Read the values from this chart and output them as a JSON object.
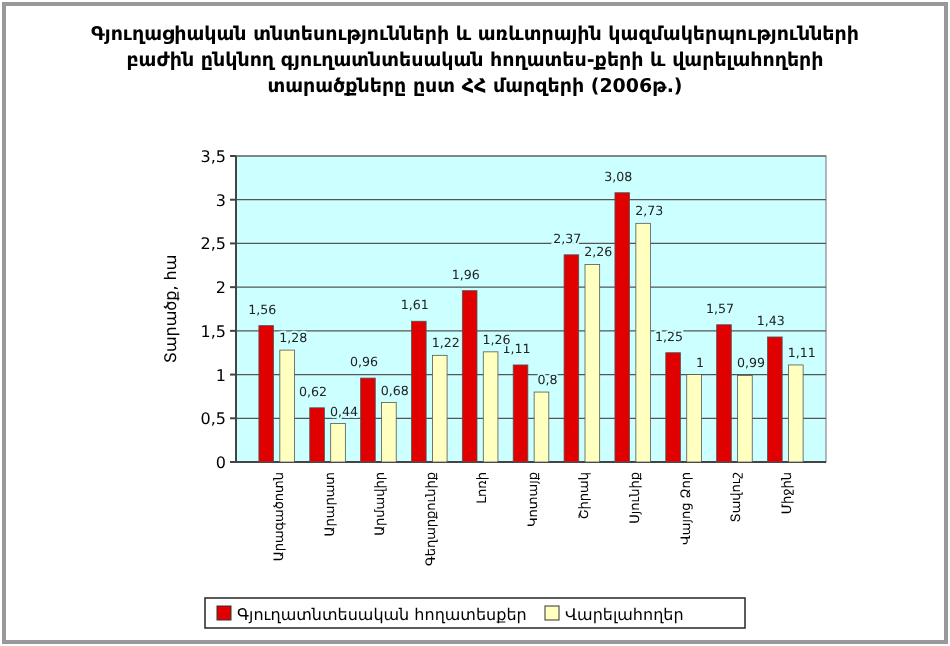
{
  "chart_data": {
    "type": "bar",
    "title": "Գյուղացիական տնտեսությունների և առևտրային կազմակերպությունների բաժին ընկնող գյուղատնտեսական հողատես-քերի և վարելահողերի տարածքները ըստ ՀՀ մարզերի (2006թ.)",
    "ylabel": "Տարածք, հա",
    "categories": [
      "Արագածոտն",
      "Արարատ",
      "Արմավիր",
      "Գեղարքունիք",
      "Լոռի",
      "Կոտայք",
      "Շիրակ",
      "Սյունիք",
      "Վայոց Ձոր",
      "Տավուշ",
      "Միջին"
    ],
    "series": [
      {
        "name": "Գյուղատնտեսական հողատեսքեր",
        "color": "#e00000",
        "values": [
          1.56,
          0.62,
          0.96,
          1.61,
          1.96,
          1.11,
          2.37,
          3.08,
          1.25,
          1.57,
          1.43
        ],
        "value_labels": [
          "1,56",
          "0,62",
          "0,96",
          "1,61",
          "1,96",
          "1,11",
          "2,37",
          "3,08",
          "1,25",
          "1,57",
          "1,43"
        ]
      },
      {
        "name": "Վարելահողեր",
        "color": "#ffffc0",
        "values": [
          1.28,
          0.44,
          0.68,
          1.22,
          1.26,
          0.8,
          2.26,
          2.73,
          1,
          0.99,
          1.11
        ],
        "value_labels": [
          "1,28",
          "0,44",
          "0,68",
          "1,22",
          "1,26",
          "0,8",
          "2,26",
          "2,73",
          "1",
          "0,99",
          "1,11"
        ]
      }
    ],
    "ylim": [
      0,
      3.5
    ],
    "yticks": [
      0,
      {
        "value": 0.5,
        "label": "0,5"
      },
      1,
      {
        "value": 1.5,
        "label": "1,5"
      },
      2,
      {
        "value": 2.5,
        "label": "2,5"
      },
      3,
      {
        "value": 3.5,
        "label": "3,5"
      }
    ],
    "grid": "y",
    "legend": "bottom"
  }
}
